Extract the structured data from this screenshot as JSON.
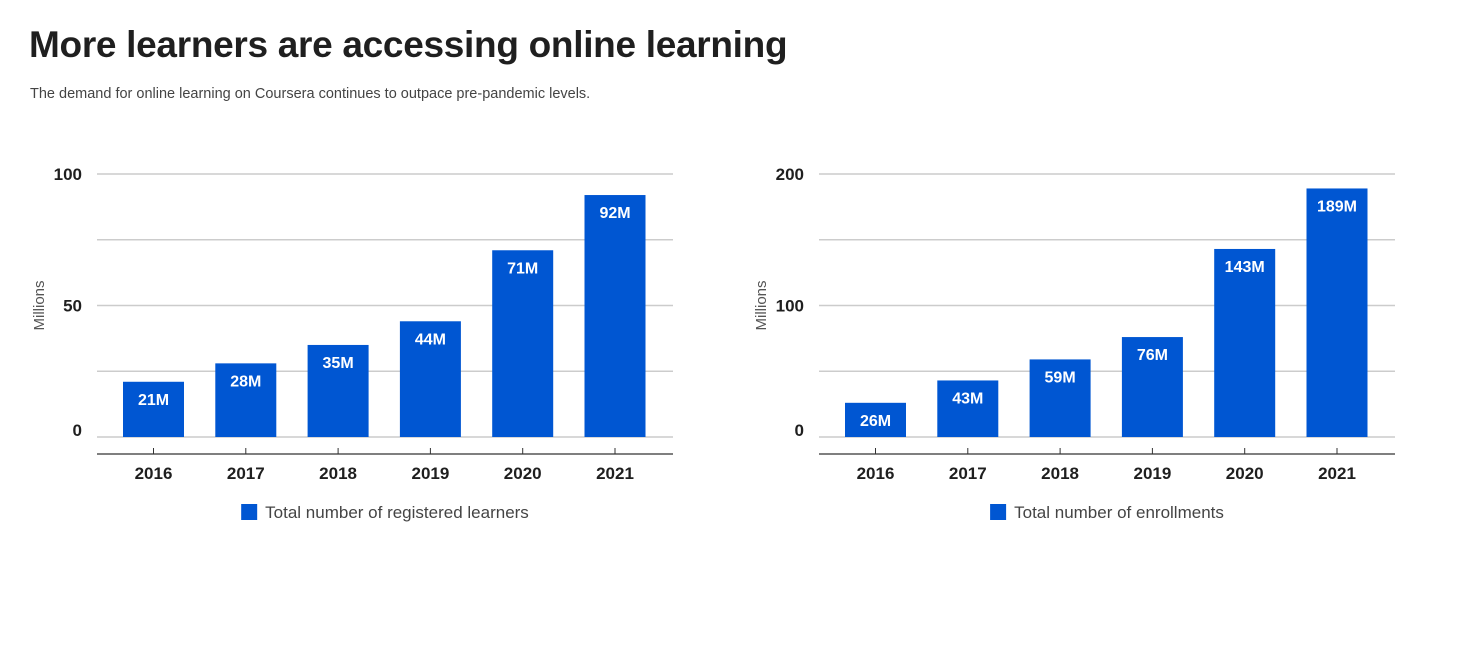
{
  "header": {
    "title": "More learners are accessing online learning",
    "subtitle": "The demand for online learning on Coursera continues to outpace pre-pandemic levels."
  },
  "colors": {
    "bar": "#0056d2",
    "grid": "#cccccc",
    "axis": "#333333"
  },
  "chart_data": [
    {
      "type": "bar",
      "categories": [
        "2016",
        "2017",
        "2018",
        "2019",
        "2020",
        "2021"
      ],
      "series": [
        {
          "name": "Total number of registered learners",
          "values": [
            21,
            28,
            35,
            44,
            71,
            92
          ]
        }
      ],
      "data_labels": [
        "21M",
        "28M",
        "35M",
        "44M",
        "71M",
        "92M"
      ],
      "ylabel": "Millions",
      "ylim": [
        0,
        100
      ],
      "yticks": [
        0,
        50,
        100
      ],
      "grid": true,
      "legend": "bottom"
    },
    {
      "type": "bar",
      "categories": [
        "2016",
        "2017",
        "2018",
        "2019",
        "2020",
        "2021"
      ],
      "series": [
        {
          "name": "Total number of enrollments",
          "values": [
            26,
            43,
            59,
            76,
            143,
            189
          ]
        }
      ],
      "data_labels": [
        "26M",
        "43M",
        "59M",
        "76M",
        "143M",
        "189M"
      ],
      "ylabel": "Millions",
      "ylim": [
        0,
        200
      ],
      "yticks": [
        0,
        100,
        200
      ],
      "grid": true,
      "legend": "bottom"
    }
  ]
}
